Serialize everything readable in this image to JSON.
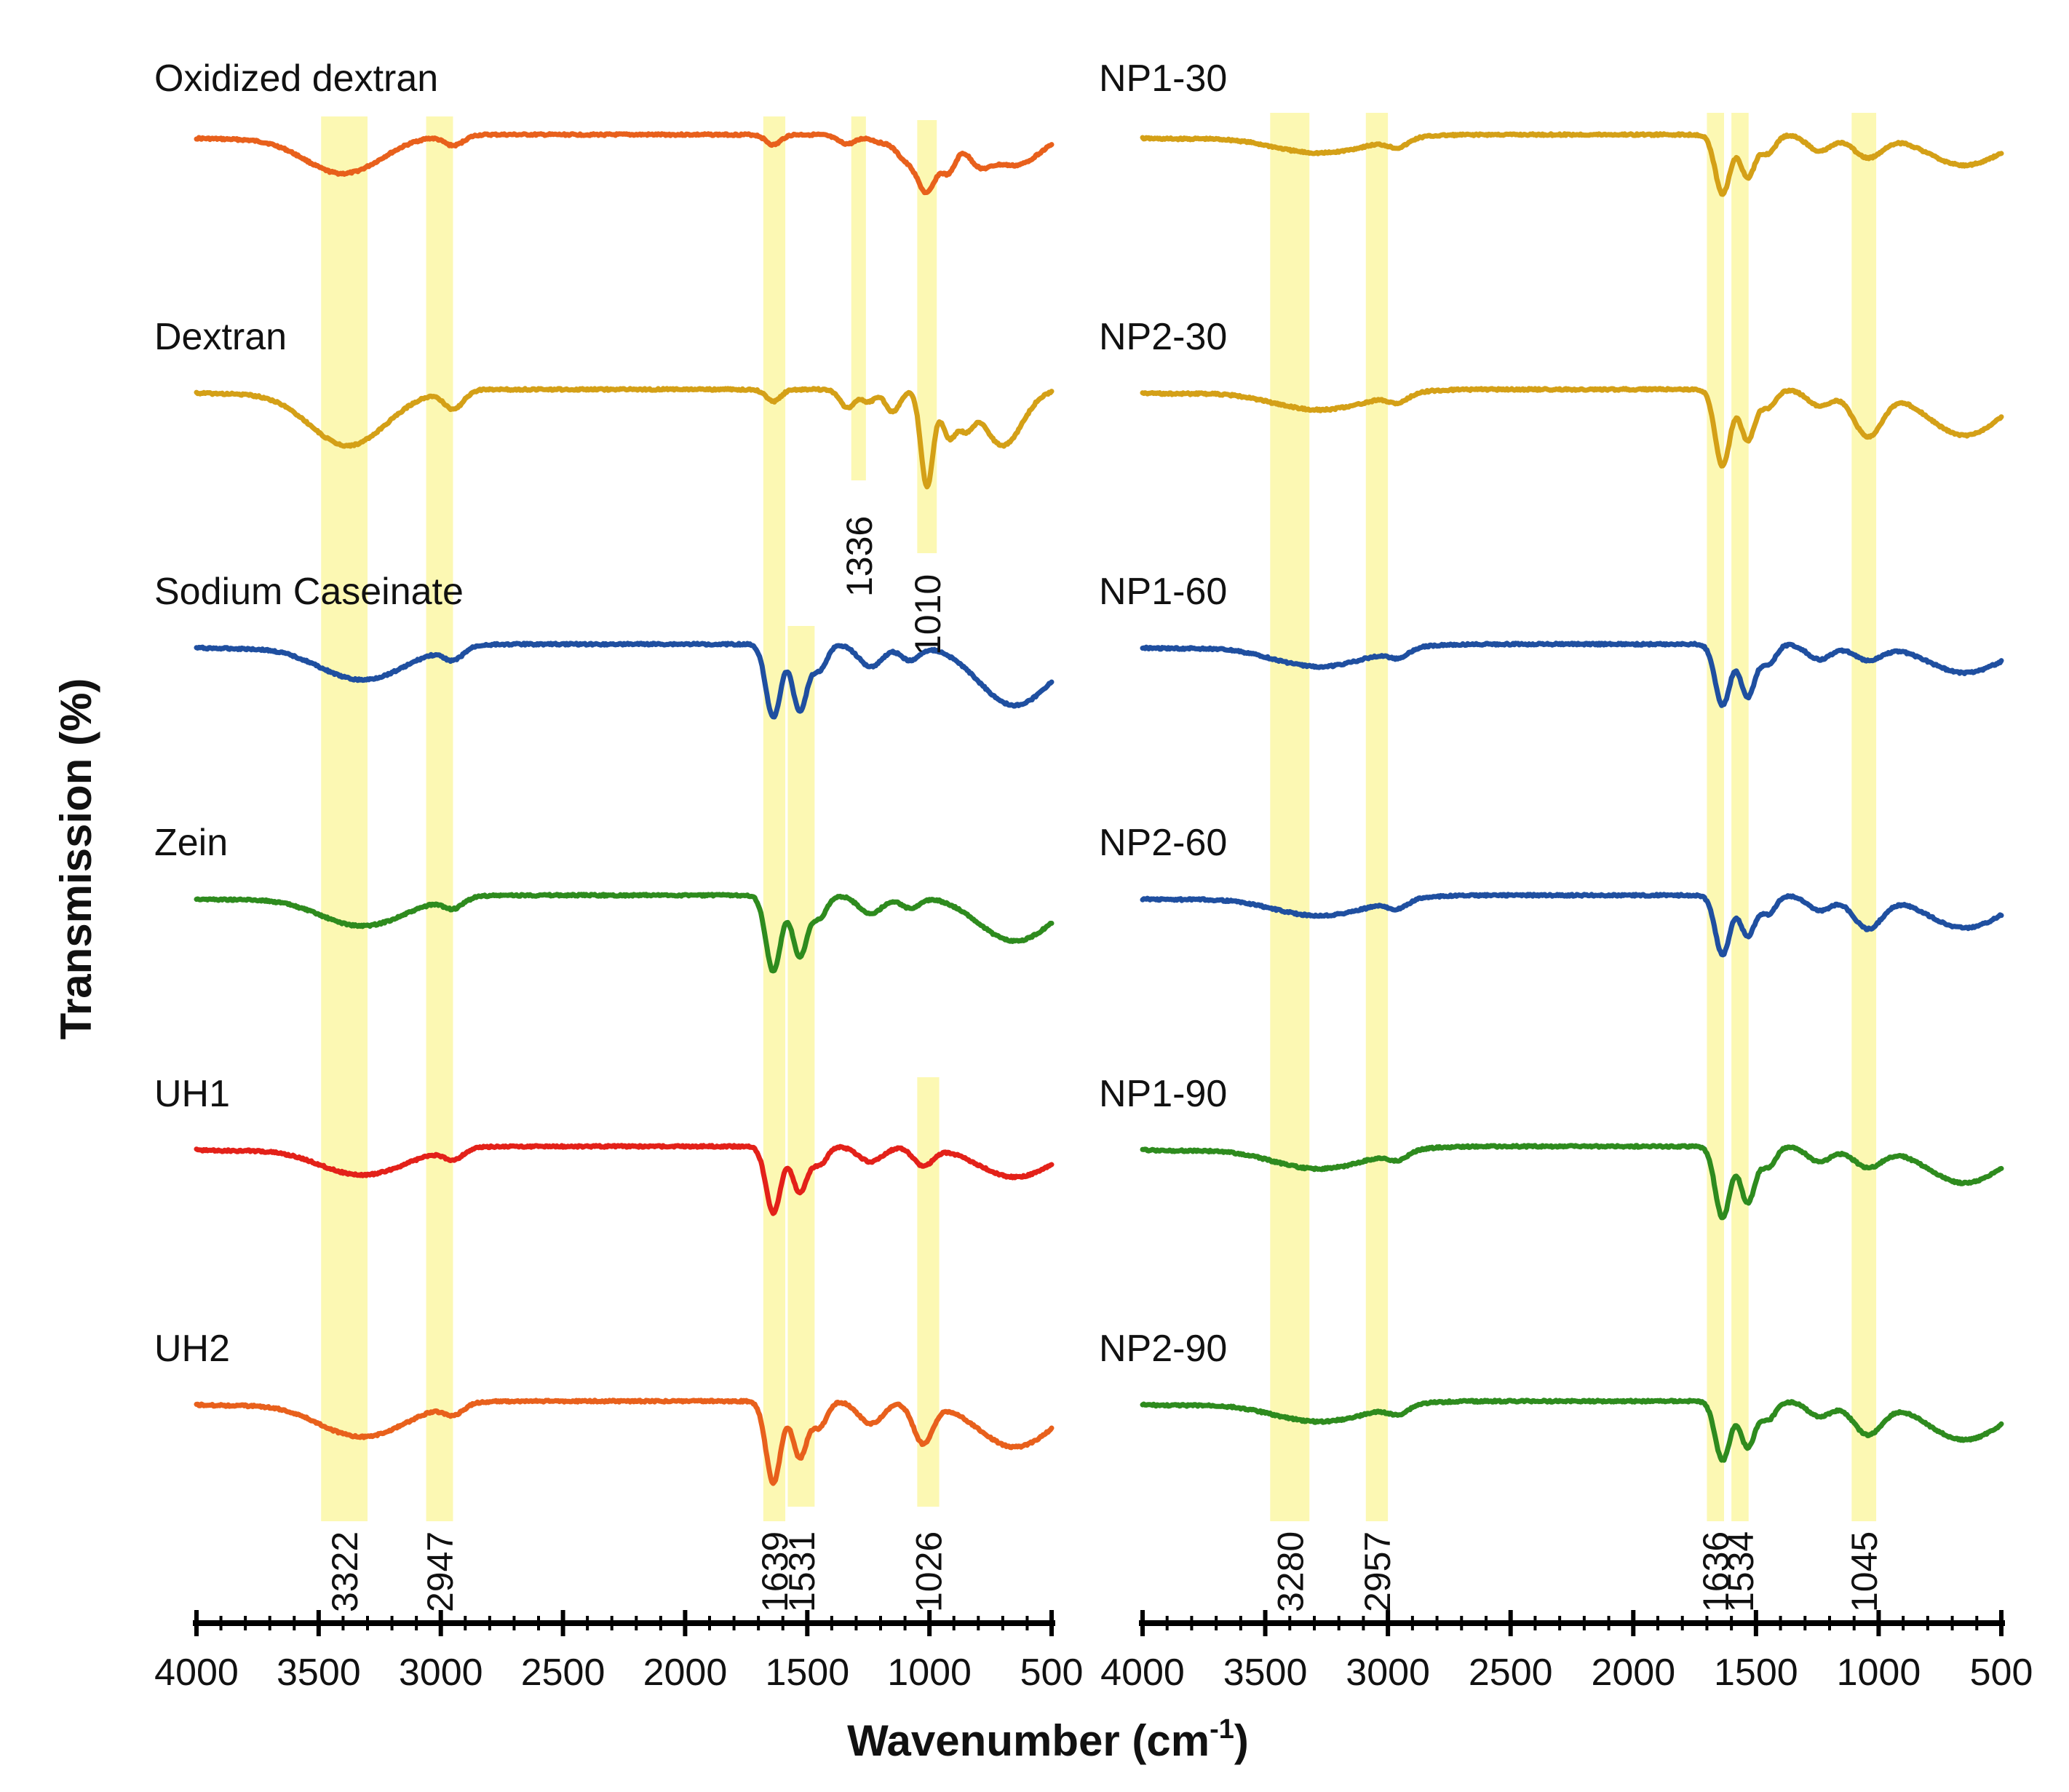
{
  "chart_data": {
    "type": "line",
    "ylabel": "Transmission (%)",
    "xlabel": "Wavenumber (cm-1)",
    "xlabel_parts": {
      "main": "Wavenumber (cm",
      "sup": "-1",
      "end": ")"
    },
    "x_axis": {
      "reversed": true,
      "range": [
        4000,
        500
      ],
      "ticks": [
        "4000",
        "3500",
        "3000",
        "2500",
        "2000",
        "1500",
        "1000",
        "500"
      ]
    },
    "panels": [
      {
        "name": "left",
        "series": [
          {
            "name": "Oxidized dextran",
            "color": "#e8601c",
            "baseline": 0.0,
            "bands": [
              [
                3400,
                0.38,
                160
              ],
              [
                2947,
                0.1,
                40
              ],
              [
                1639,
                0.1,
                30
              ],
              [
                1336,
                0.09,
                40
              ],
              [
                1200,
                0.07,
                40
              ],
              [
                1100,
                0.22,
                40
              ],
              [
                1010,
                0.55,
                40
              ],
              [
                920,
                0.32,
                30
              ],
              [
                800,
                0.22,
                50
              ],
              [
                650,
                0.3,
                100
              ]
            ]
          },
          {
            "name": "Dextran",
            "color": "#d4a017",
            "baseline": 0.0,
            "bands": [
              [
                3380,
                0.55,
                160
              ],
              [
                2947,
                0.18,
                40
              ],
              [
                1639,
                0.12,
                30
              ],
              [
                1336,
                0.18,
                30
              ],
              [
                1250,
                0.12,
                30
              ],
              [
                1150,
                0.22,
                30
              ],
              [
                1010,
                0.95,
                25
              ],
              [
                920,
                0.45,
                30
              ],
              [
                850,
                0.3,
                30
              ],
              [
                700,
                0.55,
                80
              ]
            ]
          },
          {
            "name": "Sodium Caseinate",
            "color": "#1f4fa0",
            "baseline": 0.0,
            "bands": [
              [
                3322,
                0.35,
                180
              ],
              [
                2947,
                0.12,
                40
              ],
              [
                1639,
                0.72,
                30
              ],
              [
                1531,
                0.65,
                30
              ],
              [
                1450,
                0.25,
                30
              ],
              [
                1240,
                0.22,
                50
              ],
              [
                1080,
                0.15,
                40
              ],
              [
                650,
                0.6,
                150
              ]
            ]
          },
          {
            "name": "Zein",
            "color": "#2e8b1e",
            "baseline": 0.0,
            "bands": [
              [
                3322,
                0.3,
                180
              ],
              [
                2947,
                0.1,
                40
              ],
              [
                1639,
                0.75,
                30
              ],
              [
                1531,
                0.6,
                30
              ],
              [
                1450,
                0.22,
                30
              ],
              [
                1240,
                0.18,
                50
              ],
              [
                1080,
                0.12,
                40
              ],
              [
                650,
                0.45,
                150
              ]
            ]
          },
          {
            "name": "UH1",
            "color": "#e32119",
            "baseline": 0.0,
            "bands": [
              [
                3322,
                0.28,
                180
              ],
              [
                2947,
                0.1,
                40
              ],
              [
                1639,
                0.65,
                30
              ],
              [
                1531,
                0.45,
                30
              ],
              [
                1450,
                0.18,
                30
              ],
              [
                1240,
                0.15,
                50
              ],
              [
                1026,
                0.18,
                40
              ],
              [
                650,
                0.3,
                150
              ]
            ]
          },
          {
            "name": "UH2",
            "color": "#e8601c",
            "baseline": 0.0,
            "bands": [
              [
                3322,
                0.35,
                180
              ],
              [
                2947,
                0.1,
                40
              ],
              [
                1639,
                0.8,
                30
              ],
              [
                1531,
                0.55,
                30
              ],
              [
                1450,
                0.25,
                30
              ],
              [
                1240,
                0.22,
                50
              ],
              [
                1026,
                0.4,
                40
              ],
              [
                650,
                0.45,
                150
              ]
            ]
          }
        ],
        "highlights": [
          {
            "from": 3490,
            "to": 3300,
            "label": "3322"
          },
          {
            "from": 3060,
            "to": 2950,
            "label": "2947"
          },
          {
            "from": 1680,
            "to": 1590,
            "label": "1639"
          },
          {
            "from": 1580,
            "to": 1470,
            "label": "1531"
          },
          {
            "from": 1320,
            "to": 1260,
            "label": "1336"
          },
          {
            "from": 1050,
            "to": 970,
            "label": "1010"
          },
          {
            "from": 1050,
            "to": 960,
            "label": "1026"
          }
        ]
      },
      {
        "name": "right",
        "series": [
          {
            "name": "NP1-30",
            "color": "#d4a017",
            "baseline": 0.0,
            "bands": [
              [
                3280,
                0.18,
                200
              ],
              [
                2957,
                0.08,
                40
              ],
              [
                1636,
                0.58,
                30
              ],
              [
                1534,
                0.42,
                30
              ],
              [
                1450,
                0.18,
                30
              ],
              [
                1240,
                0.16,
                50
              ],
              [
                1045,
                0.22,
                60
              ],
              [
                650,
                0.3,
                150
              ]
            ]
          },
          {
            "name": "NP2-30",
            "color": "#d4a017",
            "baseline": 0.0,
            "bands": [
              [
                3280,
                0.2,
                200
              ],
              [
                2957,
                0.08,
                40
              ],
              [
                1636,
                0.75,
                30
              ],
              [
                1534,
                0.5,
                30
              ],
              [
                1450,
                0.18,
                30
              ],
              [
                1240,
                0.16,
                50
              ],
              [
                1045,
                0.45,
                60
              ],
              [
                650,
                0.45,
                150
              ]
            ]
          },
          {
            "name": "NP1-60",
            "color": "#1f4fa0",
            "baseline": 0.0,
            "bands": [
              [
                3280,
                0.22,
                200
              ],
              [
                2957,
                0.08,
                40
              ],
              [
                1636,
                0.6,
                30
              ],
              [
                1534,
                0.52,
                30
              ],
              [
                1450,
                0.2,
                30
              ],
              [
                1240,
                0.15,
                50
              ],
              [
                1045,
                0.15,
                60
              ],
              [
                650,
                0.28,
                150
              ]
            ]
          },
          {
            "name": "NP2-60",
            "color": "#1f4fa0",
            "baseline": 0.0,
            "bands": [
              [
                3280,
                0.2,
                200
              ],
              [
                2957,
                0.08,
                40
              ],
              [
                1636,
                0.58,
                30
              ],
              [
                1534,
                0.4,
                30
              ],
              [
                1450,
                0.18,
                30
              ],
              [
                1240,
                0.15,
                50
              ],
              [
                1045,
                0.32,
                60
              ],
              [
                650,
                0.32,
                150
              ]
            ]
          },
          {
            "name": "NP1-90",
            "color": "#2e8b1e",
            "baseline": 0.0,
            "bands": [
              [
                3280,
                0.22,
                200
              ],
              [
                2957,
                0.08,
                40
              ],
              [
                1636,
                0.7,
                30
              ],
              [
                1534,
                0.55,
                30
              ],
              [
                1450,
                0.2,
                30
              ],
              [
                1240,
                0.15,
                50
              ],
              [
                1045,
                0.2,
                60
              ],
              [
                650,
                0.36,
                150
              ]
            ]
          },
          {
            "name": "NP2-90",
            "color": "#2e8b1e",
            "baseline": 0.0,
            "bands": [
              [
                3280,
                0.2,
                200
              ],
              [
                2957,
                0.08,
                40
              ],
              [
                1636,
                0.58,
                30
              ],
              [
                1534,
                0.45,
                30
              ],
              [
                1450,
                0.18,
                30
              ],
              [
                1240,
                0.15,
                50
              ],
              [
                1045,
                0.32,
                60
              ],
              [
                650,
                0.38,
                150
              ]
            ]
          }
        ],
        "highlights": [
          {
            "from": 3480,
            "to": 3320,
            "label": "3280"
          },
          {
            "from": 3090,
            "to": 3000,
            "label": "2957"
          },
          {
            "from": 1700,
            "to": 1630,
            "label": "1636"
          },
          {
            "from": 1600,
            "to": 1530,
            "label": "1534"
          },
          {
            "from": 1110,
            "to": 1010,
            "label": "1045"
          }
        ]
      }
    ]
  }
}
